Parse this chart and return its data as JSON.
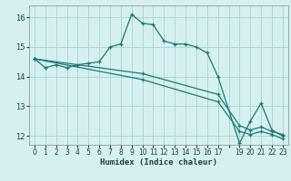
{
  "xlabel": "Humidex (Indice chaleur)",
  "bg_color": "#d6f0f0",
  "grid_color": "#a8d8d8",
  "line_color": "#1a7a6e",
  "xlim": [
    -0.5,
    23.5
  ],
  "ylim": [
    11.7,
    16.4
  ],
  "yticks": [
    12,
    13,
    14,
    15,
    16
  ],
  "xtick_positions": [
    0,
    1,
    2,
    3,
    4,
    5,
    6,
    7,
    8,
    9,
    10,
    11,
    12,
    13,
    14,
    15,
    16,
    17,
    18,
    19,
    20,
    21,
    22,
    23
  ],
  "xtick_labels": [
    "0",
    "1",
    "2",
    "3",
    "4",
    "5",
    "6",
    "7",
    "8",
    "9",
    "10",
    "11",
    "12",
    "13",
    "14",
    "15",
    "16",
    "17",
    "",
    "19",
    "20",
    "21",
    "22",
    "23"
  ],
  "line1_x": [
    0,
    1,
    2,
    3,
    4,
    5,
    6,
    7,
    8,
    9,
    10,
    11,
    12,
    13,
    14,
    15,
    16,
    17,
    19,
    20,
    21,
    22,
    23
  ],
  "line1_y": [
    14.6,
    14.3,
    14.4,
    14.3,
    14.4,
    14.45,
    14.5,
    15.0,
    15.1,
    16.1,
    15.8,
    15.75,
    15.2,
    15.1,
    15.1,
    15.0,
    14.8,
    14.0,
    11.75,
    12.5,
    13.1,
    12.2,
    12.0
  ],
  "line2_x": [
    0,
    10,
    17,
    19,
    20,
    21,
    22,
    23
  ],
  "line2_y": [
    14.6,
    14.1,
    13.4,
    12.35,
    12.2,
    12.3,
    12.15,
    12.05
  ],
  "line3_x": [
    0,
    10,
    17,
    19,
    20,
    21,
    22,
    23
  ],
  "line3_y": [
    14.6,
    13.9,
    13.15,
    12.15,
    12.05,
    12.15,
    12.05,
    11.9
  ]
}
